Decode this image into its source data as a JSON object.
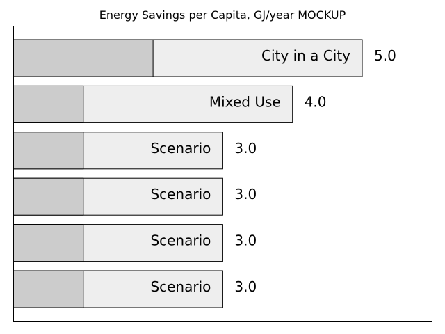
{
  "chart_data": {
    "type": "bar",
    "orientation": "horizontal",
    "title": "Energy Savings per Capita, GJ/year MOCKUP",
    "xlabel": "",
    "ylabel": "",
    "xlim": [
      0,
      6.0
    ],
    "grid": false,
    "bars": [
      {
        "label": "City in a City",
        "value": 5.0,
        "value_label": "5.0",
        "inner_value": 2.0
      },
      {
        "label": "Mixed Use",
        "value": 4.0,
        "value_label": "4.0",
        "inner_value": 1.0
      },
      {
        "label": "Scenario",
        "value": 3.0,
        "value_label": "3.0",
        "inner_value": 1.0
      },
      {
        "label": "Scenario",
        "value": 3.0,
        "value_label": "3.0",
        "inner_value": 1.0
      },
      {
        "label": "Scenario",
        "value": 3.0,
        "value_label": "3.0",
        "inner_value": 1.0
      },
      {
        "label": "Scenario",
        "value": 3.0,
        "value_label": "3.0",
        "inner_value": 1.0
      }
    ],
    "colors": {
      "bar_fill": "#eeeeee",
      "inner_fill": "#cccccc",
      "stroke": "#000000"
    }
  }
}
